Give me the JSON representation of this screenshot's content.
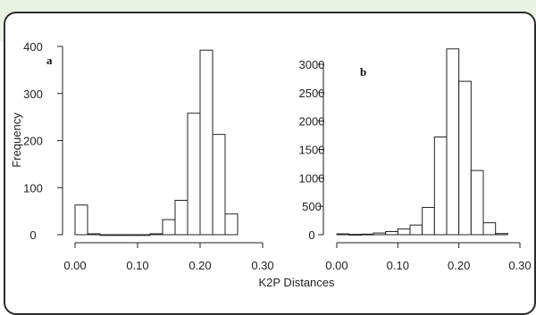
{
  "chart_data": [
    {
      "type": "bar",
      "panel_label": "a",
      "ylabel": "Frequency",
      "xlim": [
        0.0,
        0.3
      ],
      "ylim": [
        0,
        400
      ],
      "x_ticks": [
        "0.00",
        "0.10",
        "0.20",
        "0.30"
      ],
      "y_ticks": [
        "0",
        "100",
        "200",
        "300",
        "400"
      ],
      "bin_edges": [
        0.0,
        0.02,
        0.04,
        0.06,
        0.08,
        0.1,
        0.12,
        0.14,
        0.16,
        0.18,
        0.2,
        0.22,
        0.24,
        0.26
      ],
      "values": [
        63,
        2,
        0,
        0,
        0,
        0,
        2,
        32,
        73,
        258,
        392,
        213,
        44
      ]
    },
    {
      "type": "bar",
      "panel_label": "b",
      "ylabel": "",
      "xlim": [
        0.0,
        0.3
      ],
      "ylim": [
        0,
        3000
      ],
      "x_ticks": [
        "0.00",
        "0.10",
        "0.20",
        "0.30"
      ],
      "y_ticks": [
        "0",
        "500",
        "1000",
        "1500",
        "2000",
        "2500",
        "3000"
      ],
      "bin_edges": [
        0.0,
        0.02,
        0.04,
        0.06,
        0.08,
        0.1,
        0.12,
        0.14,
        0.16,
        0.18,
        0.2,
        0.22,
        0.24,
        0.26,
        0.28
      ],
      "values": [
        15,
        5,
        10,
        30,
        55,
        100,
        170,
        480,
        1720,
        3270,
        2700,
        1130,
        210,
        20
      ]
    }
  ],
  "xlabel": "K2P Distances"
}
